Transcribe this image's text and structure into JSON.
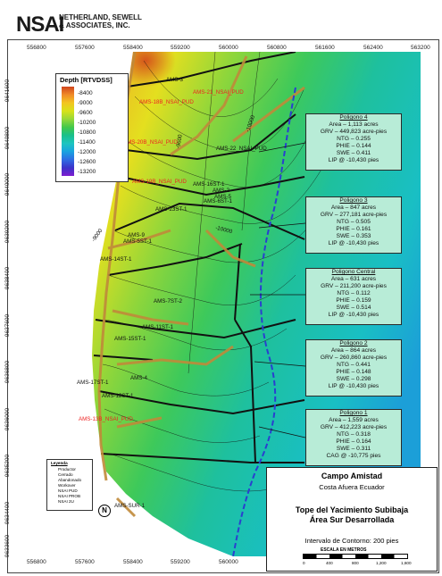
{
  "header": {
    "logo_mark": "NSAI",
    "company_line1": "NETHERLAND, SEWELL",
    "company_line2": "& ASSOCIATES, INC."
  },
  "axes": {
    "x_top": [
      "556800",
      "557600",
      "558400",
      "559200",
      "560000",
      "560800",
      "561600",
      "562400",
      "563200"
    ],
    "x_bottom": [
      "556800",
      "557600",
      "558400",
      "559200",
      "560000",
      "560800",
      "561600",
      "562400",
      "563200"
    ],
    "y_left": [
      "9641600",
      "9640800",
      "9640000",
      "9639200",
      "9638400",
      "9637600",
      "9636800",
      "9636000",
      "9635200",
      "9634400",
      "9633600"
    ],
    "y_right": [
      "9641600",
      "9640800",
      "9640000",
      "9639200",
      "9638400",
      "9637600",
      "9636800",
      "9636000",
      "9635200",
      "9634400",
      "9633600"
    ]
  },
  "legend": {
    "title": "Depth [RTVDSS]",
    "levels": [
      "-8400",
      "-9000",
      "-9600",
      "-10200",
      "-10800",
      "-11400",
      "-12000",
      "-12600",
      "-13200"
    ]
  },
  "contours": {
    "labels": [
      "-10000",
      "-9000",
      "-10000",
      "-9600"
    ]
  },
  "wells": [
    {
      "name": "AMS-3",
      "color": "black"
    },
    {
      "name": "AMS-21_NSAI_PUD",
      "color": "red"
    },
    {
      "name": "AMS-18B_NSAI_PUD",
      "color": "red"
    },
    {
      "name": "AMS-20B_NSAI_PUD",
      "color": "red"
    },
    {
      "name": "AMS-22_NSAI_PUD",
      "color": "black"
    },
    {
      "name": "AMS-19B_NSAI_PUD",
      "color": "red"
    },
    {
      "name": "AMS-16ST-1",
      "color": "black"
    },
    {
      "name": "AMS-2",
      "color": "black"
    },
    {
      "name": "AMS-5",
      "color": "black"
    },
    {
      "name": "AMS-6ST-1",
      "color": "black"
    },
    {
      "name": "AMS-23ST-1",
      "color": "black"
    },
    {
      "name": "AMS-9",
      "color": "black"
    },
    {
      "name": "AMS-5ST-1",
      "color": "black"
    },
    {
      "name": "AMS-14ST-1",
      "color": "black"
    },
    {
      "name": "AMS-7ST-2",
      "color": "black"
    },
    {
      "name": "AMS-11ST-1",
      "color": "black"
    },
    {
      "name": "AMS-15ST-1",
      "color": "black"
    },
    {
      "name": "AMS-4",
      "color": "black"
    },
    {
      "name": "AMS-17ST-1",
      "color": "black"
    },
    {
      "name": "AMS-12ST-1",
      "color": "black"
    },
    {
      "name": "AMS-13B_NSAI_PUD",
      "color": "red"
    },
    {
      "name": "AMS-SUR-1",
      "color": "black"
    }
  ],
  "polygons": [
    {
      "title": "Poligono 4",
      "lines": [
        "Area – 1,113 acres",
        "GRV – 449,823 acre-pies",
        "NTG – 0.255",
        "PHIE – 0.144",
        "SWE – 0.411",
        "LIP @ -10,430 pies"
      ]
    },
    {
      "title": "Poligono 3",
      "lines": [
        "Area – 847 acres",
        "GRV – 277,181 acre-pies",
        "NTG – 0.505",
        "PHIE – 0.161",
        "SWE – 0.353",
        "LIP @ -10,430 pies"
      ]
    },
    {
      "title": "Poligono Central",
      "lines": [
        "Area – 631 acres",
        "GRV – 211,200 acre-pies",
        "NTG – 0.112",
        "PHIE – 0.159",
        "SWE – 0.514",
        "LIP @ -10,430 pies"
      ]
    },
    {
      "title": "Poligono 2",
      "lines": [
        "Area – 864 acres",
        "GRV – 260,860 acre-pies",
        "NTG – 0.441",
        "PHIE – 0.148",
        "SWE – 0.298",
        "LIP @ -10,430 pies"
      ]
    },
    {
      "title": "Poligono 1",
      "lines": [
        "Area – 1,559 acres",
        "GRV – 412,223 acre-pies",
        "NTG – 0.318",
        "PHIE – 0.164",
        "SWE – 0.311",
        "CAG @ -10,775 pies"
      ]
    }
  ],
  "symbol_legend": {
    "title": "Leyenda",
    "items": [
      "Productor",
      "Cerrado",
      "Abandonado",
      "Workover",
      "NSAI PUD",
      "NSAI PROB",
      "NSAI 2U"
    ]
  },
  "north_label": "N",
  "title_block": {
    "field": "Campo Amistad",
    "location": "Costa Afuera Ecuador",
    "map_title_1": "Tope del Yacimiento Subibaja",
    "map_title_2": "Área Sur Desarrollada",
    "contour_interval": "Intervalo de Contorno: 200 pies",
    "scale_title": "ESCALA EN METROS",
    "scale_ticks": [
      "0",
      "400",
      "800",
      "1,200",
      "1,600"
    ]
  }
}
